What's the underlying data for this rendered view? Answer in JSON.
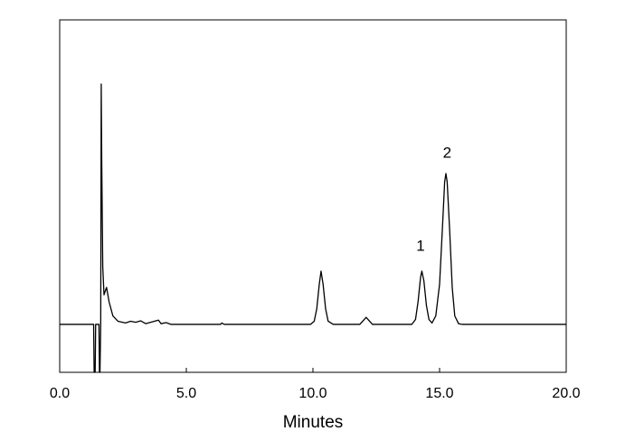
{
  "chart_data": {
    "type": "line",
    "xlabel": "Minutes",
    "color": "#000000",
    "x": [
      0.0,
      1.34,
      1.36,
      1.4,
      1.42,
      1.55,
      1.57,
      1.59,
      1.62,
      1.64,
      1.66,
      1.7,
      1.75,
      1.85,
      1.95,
      2.1,
      2.3,
      2.6,
      2.8,
      3.0,
      3.2,
      3.4,
      3.9,
      4.0,
      4.2,
      4.4,
      6.35,
      6.4,
      6.5,
      9.9,
      10.05,
      10.15,
      10.25,
      10.32,
      10.4,
      10.5,
      10.6,
      10.8,
      11.85,
      12.0,
      12.1,
      12.2,
      12.35,
      13.9,
      14.05,
      14.15,
      14.25,
      14.3,
      14.38,
      14.48,
      14.58,
      14.7,
      14.85,
      15.0,
      15.12,
      15.2,
      15.25,
      15.3,
      15.4,
      15.5,
      15.6,
      15.75,
      15.9,
      20.0
    ],
    "values": [
      13.6,
      13.6,
      0,
      0,
      13.6,
      13.6,
      0,
      0,
      13.6,
      81.8,
      60,
      30,
      22,
      24.1,
      20,
      16,
      14.5,
      14,
      14.5,
      14.2,
      14.6,
      13.8,
      14.8,
      13.8,
      14.1,
      13.6,
      13.6,
      14,
      13.6,
      13.6,
      14.5,
      18,
      25,
      28.7,
      25,
      18,
      14.5,
      13.6,
      13.6,
      14.8,
      15.6,
      14.8,
      13.6,
      13.6,
      15,
      20,
      27,
      28.7,
      26,
      19,
      15,
      14,
      16,
      25,
      42,
      54,
      56.4,
      54,
      40,
      24,
      16,
      13.8,
      13.6,
      13.6
    ],
    "xlim": [
      0,
      20
    ],
    "ylim": [
      0,
      100
    ],
    "xticks": [
      {
        "value": 0,
        "label": "0.0"
      },
      {
        "value": 5,
        "label": "5.0"
      },
      {
        "value": 10,
        "label": "10.0"
      },
      {
        "value": 15,
        "label": "15.0"
      },
      {
        "value": 20,
        "label": "20.0"
      }
    ],
    "annotations": [
      {
        "text": "1",
        "x": 14.25,
        "y": 35.6
      },
      {
        "text": "2",
        "x": 15.3,
        "y": 62
      }
    ]
  }
}
